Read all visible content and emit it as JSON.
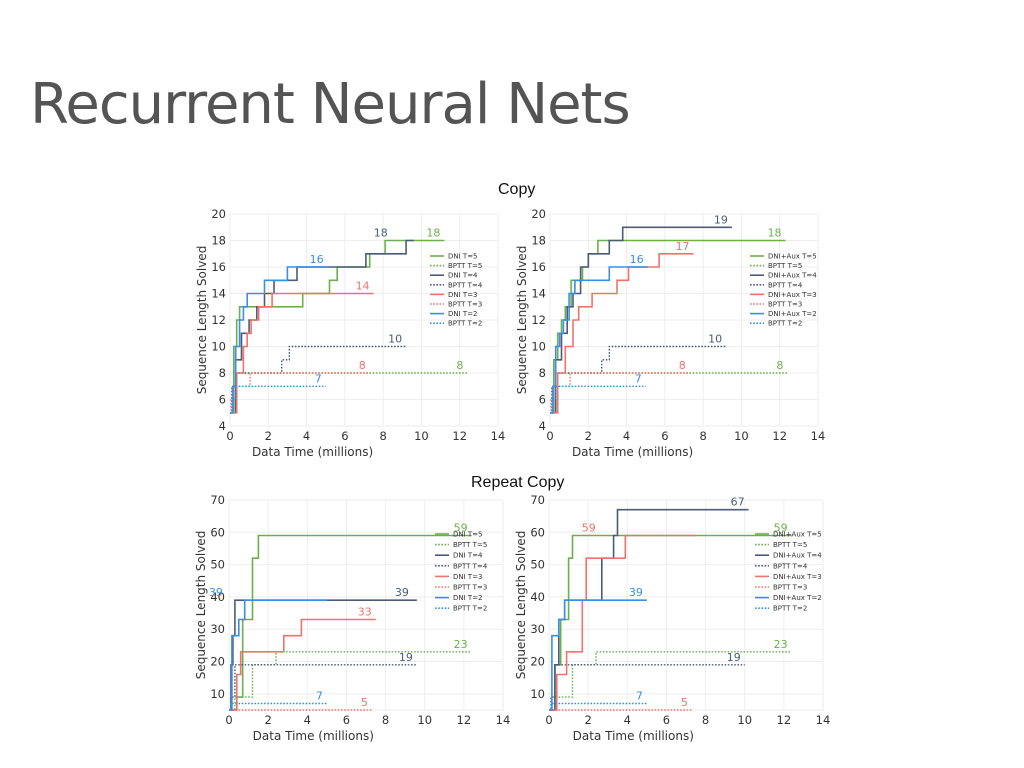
{
  "slide": {
    "title": "Recurrent Neural Nets",
    "copy_title": "Copy",
    "repeat_title": "Repeat Copy"
  },
  "chart_data": [
    {
      "type": "line",
      "title": "Copy",
      "xlabel": "Data Time (millions)",
      "ylabel": "Sequence Length Solved",
      "xlim": [
        0,
        14
      ],
      "ylim": [
        4,
        20
      ],
      "xticks": [
        0,
        2,
        4,
        6,
        8,
        10,
        12,
        14
      ],
      "yticks": [
        4,
        6,
        8,
        10,
        12,
        14,
        16,
        18,
        20
      ],
      "grid": true,
      "legend": "right",
      "series": [
        {
          "name": "DNI  T=5",
          "color": "#6ab04c",
          "dash": false,
          "label": "18",
          "x": [
            0,
            0.2,
            0.2,
            0.35,
            0.35,
            0.5,
            0.5,
            0.7,
            0.7,
            3.8,
            3.8,
            5.2,
            5.2,
            5.6,
            5.6,
            7.3,
            7.3,
            8.1,
            8.1,
            9.5,
            9.5,
            11.2
          ],
          "y": [
            5,
            5,
            10,
            10,
            12,
            12,
            13,
            13,
            13,
            13,
            14,
            14,
            15,
            15,
            16,
            16,
            17,
            17,
            18,
            18,
            18,
            18
          ]
        },
        {
          "name": "BPTT T=5",
          "color": "#6ab04c",
          "dash": true,
          "label": "8",
          "x": [
            0,
            0.1,
            0.1,
            0.3,
            0.3,
            12.4
          ],
          "y": [
            5,
            5,
            7,
            7,
            8,
            8
          ]
        },
        {
          "name": "DNI  T=4",
          "color": "#4c5c78",
          "dash": false,
          "label": "18",
          "x": [
            0,
            0.3,
            0.3,
            0.6,
            0.6,
            1,
            1,
            1.4,
            1.4,
            1.8,
            1.8,
            2.3,
            2.3,
            3.5,
            3.5,
            7.1,
            7.1,
            9.2,
            9.2,
            9.6
          ],
          "y": [
            5,
            5,
            9,
            9,
            11,
            11,
            12,
            12,
            13,
            13,
            14,
            14,
            15,
            15,
            16,
            16,
            17,
            17,
            18,
            18
          ]
        },
        {
          "name": "BPTT T=4",
          "color": "#4c5c78",
          "dash": true,
          "label": "10",
          "x": [
            0,
            0.1,
            0.1,
            0.3,
            0.3,
            2.7,
            2.7,
            3.1,
            3.1,
            9.2
          ],
          "y": [
            5,
            5,
            7,
            7,
            8,
            8,
            9,
            9,
            10,
            10
          ]
        },
        {
          "name": "DNI  T=3",
          "color": "#f0736b",
          "dash": false,
          "label": "14",
          "x": [
            0,
            0.35,
            0.35,
            0.7,
            0.7,
            0.9,
            0.9,
            1.1,
            1.1,
            1.5,
            1.5,
            2.2,
            2.2,
            2.8,
            2.8,
            5.5,
            5.5,
            7.5
          ],
          "y": [
            5,
            5,
            8,
            8,
            10,
            10,
            11,
            11,
            12,
            12,
            13,
            13,
            14,
            14,
            14,
            14,
            14,
            14
          ]
        },
        {
          "name": "BPTT T=3",
          "color": "#f0736b",
          "dash": true,
          "label": "8",
          "x": [
            0,
            0.05,
            0.05,
            0.2,
            0.2,
            1,
            1,
            1.05,
            1.05,
            7.3
          ],
          "y": [
            5,
            5,
            6,
            6,
            7,
            7,
            7,
            7,
            8,
            8
          ]
        },
        {
          "name": "DNI  T=2",
          "color": "#3a8ee6",
          "dash": false,
          "label": "16",
          "x": [
            0,
            0.15,
            0.15,
            0.3,
            0.3,
            0.5,
            0.5,
            0.7,
            0.7,
            0.9,
            0.9,
            1.8,
            1.8,
            3,
            3,
            5.1
          ],
          "y": [
            5,
            5,
            7,
            7,
            10,
            10,
            12,
            12,
            13,
            13,
            14,
            14,
            15,
            15,
            16,
            16
          ]
        },
        {
          "name": "BPTT T=2",
          "color": "#3a8ee6",
          "dash": true,
          "label": "7",
          "x": [
            0,
            0.1,
            0.1,
            0.3,
            0.3,
            5
          ],
          "y": [
            5,
            5,
            6,
            6,
            7,
            7
          ]
        }
      ]
    },
    {
      "type": "line",
      "title": "Copy",
      "xlabel": "Data Time (millions)",
      "ylabel": "Sequence Length Solved",
      "xlim": [
        0,
        14
      ],
      "ylim": [
        4,
        20
      ],
      "xticks": [
        0,
        2,
        4,
        6,
        8,
        10,
        12,
        14
      ],
      "yticks": [
        4,
        6,
        8,
        10,
        12,
        14,
        16,
        18,
        20
      ],
      "grid": true,
      "legend": "right",
      "series": [
        {
          "name": "DNI+Aux T=5",
          "color": "#6ab04c",
          "dash": false,
          "label": "18",
          "x": [
            0,
            0.2,
            0.2,
            0.4,
            0.4,
            0.6,
            0.6,
            0.8,
            0.8,
            1.1,
            1.1,
            1.7,
            1.7,
            2,
            2,
            2.5,
            2.5,
            12.3
          ],
          "y": [
            5,
            5,
            9,
            9,
            11,
            11,
            12,
            12,
            13,
            13,
            15,
            15,
            16,
            16,
            17,
            17,
            18,
            18
          ]
        },
        {
          "name": "BPTT       T=5",
          "color": "#6ab04c",
          "dash": true,
          "label": "8",
          "x": [
            0,
            0.1,
            0.1,
            0.3,
            0.3,
            12.4
          ],
          "y": [
            5,
            5,
            7,
            7,
            8,
            8
          ]
        },
        {
          "name": "DNI+Aux T=4",
          "color": "#4c5c78",
          "dash": false,
          "label": "19",
          "x": [
            0,
            0.3,
            0.3,
            0.6,
            0.6,
            0.9,
            0.9,
            1.2,
            1.2,
            1.6,
            1.6,
            2,
            2,
            3.1,
            3.1,
            3.8,
            3.8,
            9.5
          ],
          "y": [
            5,
            5,
            9,
            9,
            11,
            11,
            13,
            13,
            14,
            14,
            16,
            16,
            17,
            17,
            18,
            18,
            19,
            19
          ]
        },
        {
          "name": "BPTT       T=4",
          "color": "#4c5c78",
          "dash": true,
          "label": "10",
          "x": [
            0,
            0.1,
            0.1,
            0.3,
            0.3,
            2.7,
            2.7,
            3.1,
            3.1,
            9.2
          ],
          "y": [
            5,
            5,
            7,
            7,
            8,
            8,
            9,
            9,
            10,
            10
          ]
        },
        {
          "name": "DNI+Aux T=3",
          "color": "#f0736b",
          "dash": false,
          "label": "17",
          "x": [
            0,
            0.4,
            0.4,
            0.8,
            0.8,
            1.2,
            1.2,
            1.5,
            1.5,
            2.2,
            2.2,
            3.5,
            3.5,
            4.1,
            4.1,
            5.7,
            5.7,
            6.3,
            6.3,
            7.5
          ],
          "y": [
            5,
            5,
            8,
            8,
            10,
            10,
            12,
            12,
            13,
            13,
            14,
            14,
            15,
            15,
            16,
            16,
            17,
            17,
            17,
            17
          ]
        },
        {
          "name": "BPTT       T=3",
          "color": "#f0736b",
          "dash": true,
          "label": "8",
          "x": [
            0,
            0.05,
            0.05,
            0.2,
            0.2,
            1,
            1,
            1.05,
            1.05,
            7.3
          ],
          "y": [
            5,
            5,
            6,
            6,
            7,
            7,
            7,
            7,
            8,
            8
          ]
        },
        {
          "name": "DNI+Aux T=2",
          "color": "#3a8ee6",
          "dash": false,
          "label": "16",
          "x": [
            0,
            0.15,
            0.15,
            0.3,
            0.3,
            0.5,
            0.5,
            0.7,
            0.7,
            1,
            1,
            1.3,
            1.3,
            3.1,
            3.1,
            4.1,
            4.1,
            5.1
          ],
          "y": [
            5,
            5,
            7,
            7,
            10,
            10,
            11,
            11,
            12,
            12,
            14,
            14,
            15,
            15,
            16,
            16,
            16,
            16
          ]
        },
        {
          "name": "BPTT       T=2",
          "color": "#3a8ee6",
          "dash": true,
          "label": "7",
          "x": [
            0,
            0.1,
            0.1,
            0.3,
            0.3,
            5
          ],
          "y": [
            5,
            5,
            6,
            6,
            7,
            7
          ]
        }
      ]
    },
    {
      "type": "line",
      "title": "Repeat Copy",
      "xlabel": "Data Time (millions)",
      "ylabel": "Sequence Length Solved",
      "xlim": [
        0,
        14
      ],
      "ylim": [
        5,
        70
      ],
      "xticks": [
        0,
        2,
        4,
        6,
        8,
        10,
        12,
        14
      ],
      "yticks": [
        10,
        20,
        30,
        40,
        50,
        60,
        70
      ],
      "grid": true,
      "legend": "right",
      "series": [
        {
          "name": "DNI   T=5",
          "color": "#6ab04c",
          "dash": false,
          "label": "59",
          "x": [
            0,
            0.4,
            0.4,
            0.7,
            0.7,
            1.2,
            1.2,
            1.5,
            1.5,
            1.7,
            1.7,
            12.4
          ],
          "y": [
            5,
            5,
            9,
            9,
            33,
            33,
            52,
            52,
            59,
            59,
            59,
            59
          ]
        },
        {
          "name": "BPTT  T=5",
          "color": "#6ab04c",
          "dash": true,
          "label": "23",
          "x": [
            0,
            0.3,
            0.3,
            1.2,
            1.2,
            2.4,
            2.4,
            12.4
          ],
          "y": [
            5,
            5,
            9,
            9,
            19,
            19,
            23,
            23
          ]
        },
        {
          "name": "DNI   T=4",
          "color": "#4c5c78",
          "dash": false,
          "label": "39",
          "x": [
            0,
            0.1,
            0.1,
            0.2,
            0.2,
            0.3,
            0.3,
            9.6
          ],
          "y": [
            5,
            5,
            19,
            19,
            28,
            28,
            39,
            39
          ]
        },
        {
          "name": "BPTT T=4",
          "color": "#4c5c78",
          "dash": true,
          "label": "19",
          "x": [
            0,
            0.1,
            0.1,
            0.3,
            0.3,
            9.6
          ],
          "y": [
            5,
            5,
            9,
            9,
            19,
            19
          ]
        },
        {
          "name": "DNI   T=3",
          "color": "#f0736b",
          "dash": false,
          "label": "33",
          "x": [
            0,
            0.4,
            0.4,
            0.6,
            0.6,
            2.8,
            2.8,
            3.7,
            3.7,
            4,
            4,
            7.5
          ],
          "y": [
            5,
            5,
            16,
            16,
            23,
            23,
            28,
            28,
            33,
            33,
            33,
            33
          ]
        },
        {
          "name": "BPTT T=3",
          "color": "#f0736b",
          "dash": true,
          "label": "5",
          "x": [
            0,
            7.3
          ],
          "y": [
            5,
            5
          ]
        },
        {
          "name": "DNI   T=2",
          "color": "#3a8ee6",
          "dash": false,
          "label": "39",
          "x": [
            0,
            0.15,
            0.15,
            0.5,
            0.5,
            0.8,
            0.8,
            5
          ],
          "y": [
            5,
            5,
            28,
            28,
            33,
            33,
            39,
            39
          ]
        },
        {
          "name": "BPTT T=2",
          "color": "#3a8ee6",
          "dash": true,
          "label": "7",
          "x": [
            0,
            0.1,
            0.1,
            5
          ],
          "y": [
            5,
            5,
            7,
            7
          ]
        }
      ]
    },
    {
      "type": "line",
      "title": "Repeat Copy",
      "xlabel": "Data Time (millions)",
      "ylabel": "Sequence Length Solved",
      "xlim": [
        0,
        14
      ],
      "ylim": [
        5,
        70
      ],
      "xticks": [
        0,
        2,
        4,
        6,
        8,
        10,
        12,
        14
      ],
      "yticks": [
        10,
        20,
        30,
        40,
        50,
        60,
        70
      ],
      "grid": true,
      "legend": "right",
      "series": [
        {
          "name": "DNI+Aux T=5",
          "color": "#6ab04c",
          "dash": false,
          "label": "59",
          "x": [
            0,
            0.3,
            0.3,
            0.6,
            0.6,
            1,
            1,
            1.2,
            1.2,
            12.4
          ],
          "y": [
            5,
            5,
            19,
            19,
            33,
            33,
            52,
            52,
            59,
            59
          ]
        },
        {
          "name": "BPTT       T=5",
          "color": "#6ab04c",
          "dash": true,
          "label": "23",
          "x": [
            0,
            0.3,
            0.3,
            1.2,
            1.2,
            2.4,
            2.4,
            12.4
          ],
          "y": [
            5,
            5,
            9,
            9,
            19,
            19,
            23,
            23
          ]
        },
        {
          "name": "DNI+Aux T=4",
          "color": "#4c5c78",
          "dash": false,
          "label": "67",
          "x": [
            0,
            0.3,
            0.3,
            0.5,
            0.5,
            0.8,
            0.8,
            2.7,
            2.7,
            3.3,
            3.3,
            3.5,
            3.5,
            10.2
          ],
          "y": [
            5,
            5,
            19,
            19,
            33,
            33,
            39,
            39,
            52,
            52,
            59,
            59,
            67,
            67
          ]
        },
        {
          "name": "BPTT       T=4",
          "color": "#4c5c78",
          "dash": true,
          "label": "19",
          "x": [
            0,
            0.1,
            0.1,
            0.3,
            0.3,
            10
          ],
          "y": [
            5,
            5,
            9,
            9,
            19,
            19
          ]
        },
        {
          "name": "DNI+Aux T=3",
          "color": "#f0736b",
          "dash": false,
          "label": "59",
          "x": [
            0,
            0.4,
            0.4,
            0.9,
            0.9,
            1.7,
            1.7,
            1.9,
            1.9,
            3.9,
            3.9,
            7.5
          ],
          "y": [
            5,
            5,
            16,
            16,
            23,
            23,
            39,
            39,
            52,
            52,
            59,
            59
          ]
        },
        {
          "name": "BPTT       T=3",
          "color": "#f0736b",
          "dash": true,
          "label": "5",
          "x": [
            0,
            7.3
          ],
          "y": [
            5,
            5
          ]
        },
        {
          "name": "DNI+Aux T=2",
          "color": "#3a8ee6",
          "dash": false,
          "label": "39",
          "x": [
            0,
            0.15,
            0.15,
            0.5,
            0.5,
            0.8,
            0.8,
            5
          ],
          "y": [
            5,
            5,
            28,
            28,
            33,
            33,
            39,
            39
          ]
        },
        {
          "name": "BPTT       T=2",
          "color": "#3a8ee6",
          "dash": true,
          "label": "7",
          "x": [
            0,
            0.1,
            0.1,
            5
          ],
          "y": [
            5,
            5,
            7,
            7
          ]
        }
      ]
    }
  ]
}
